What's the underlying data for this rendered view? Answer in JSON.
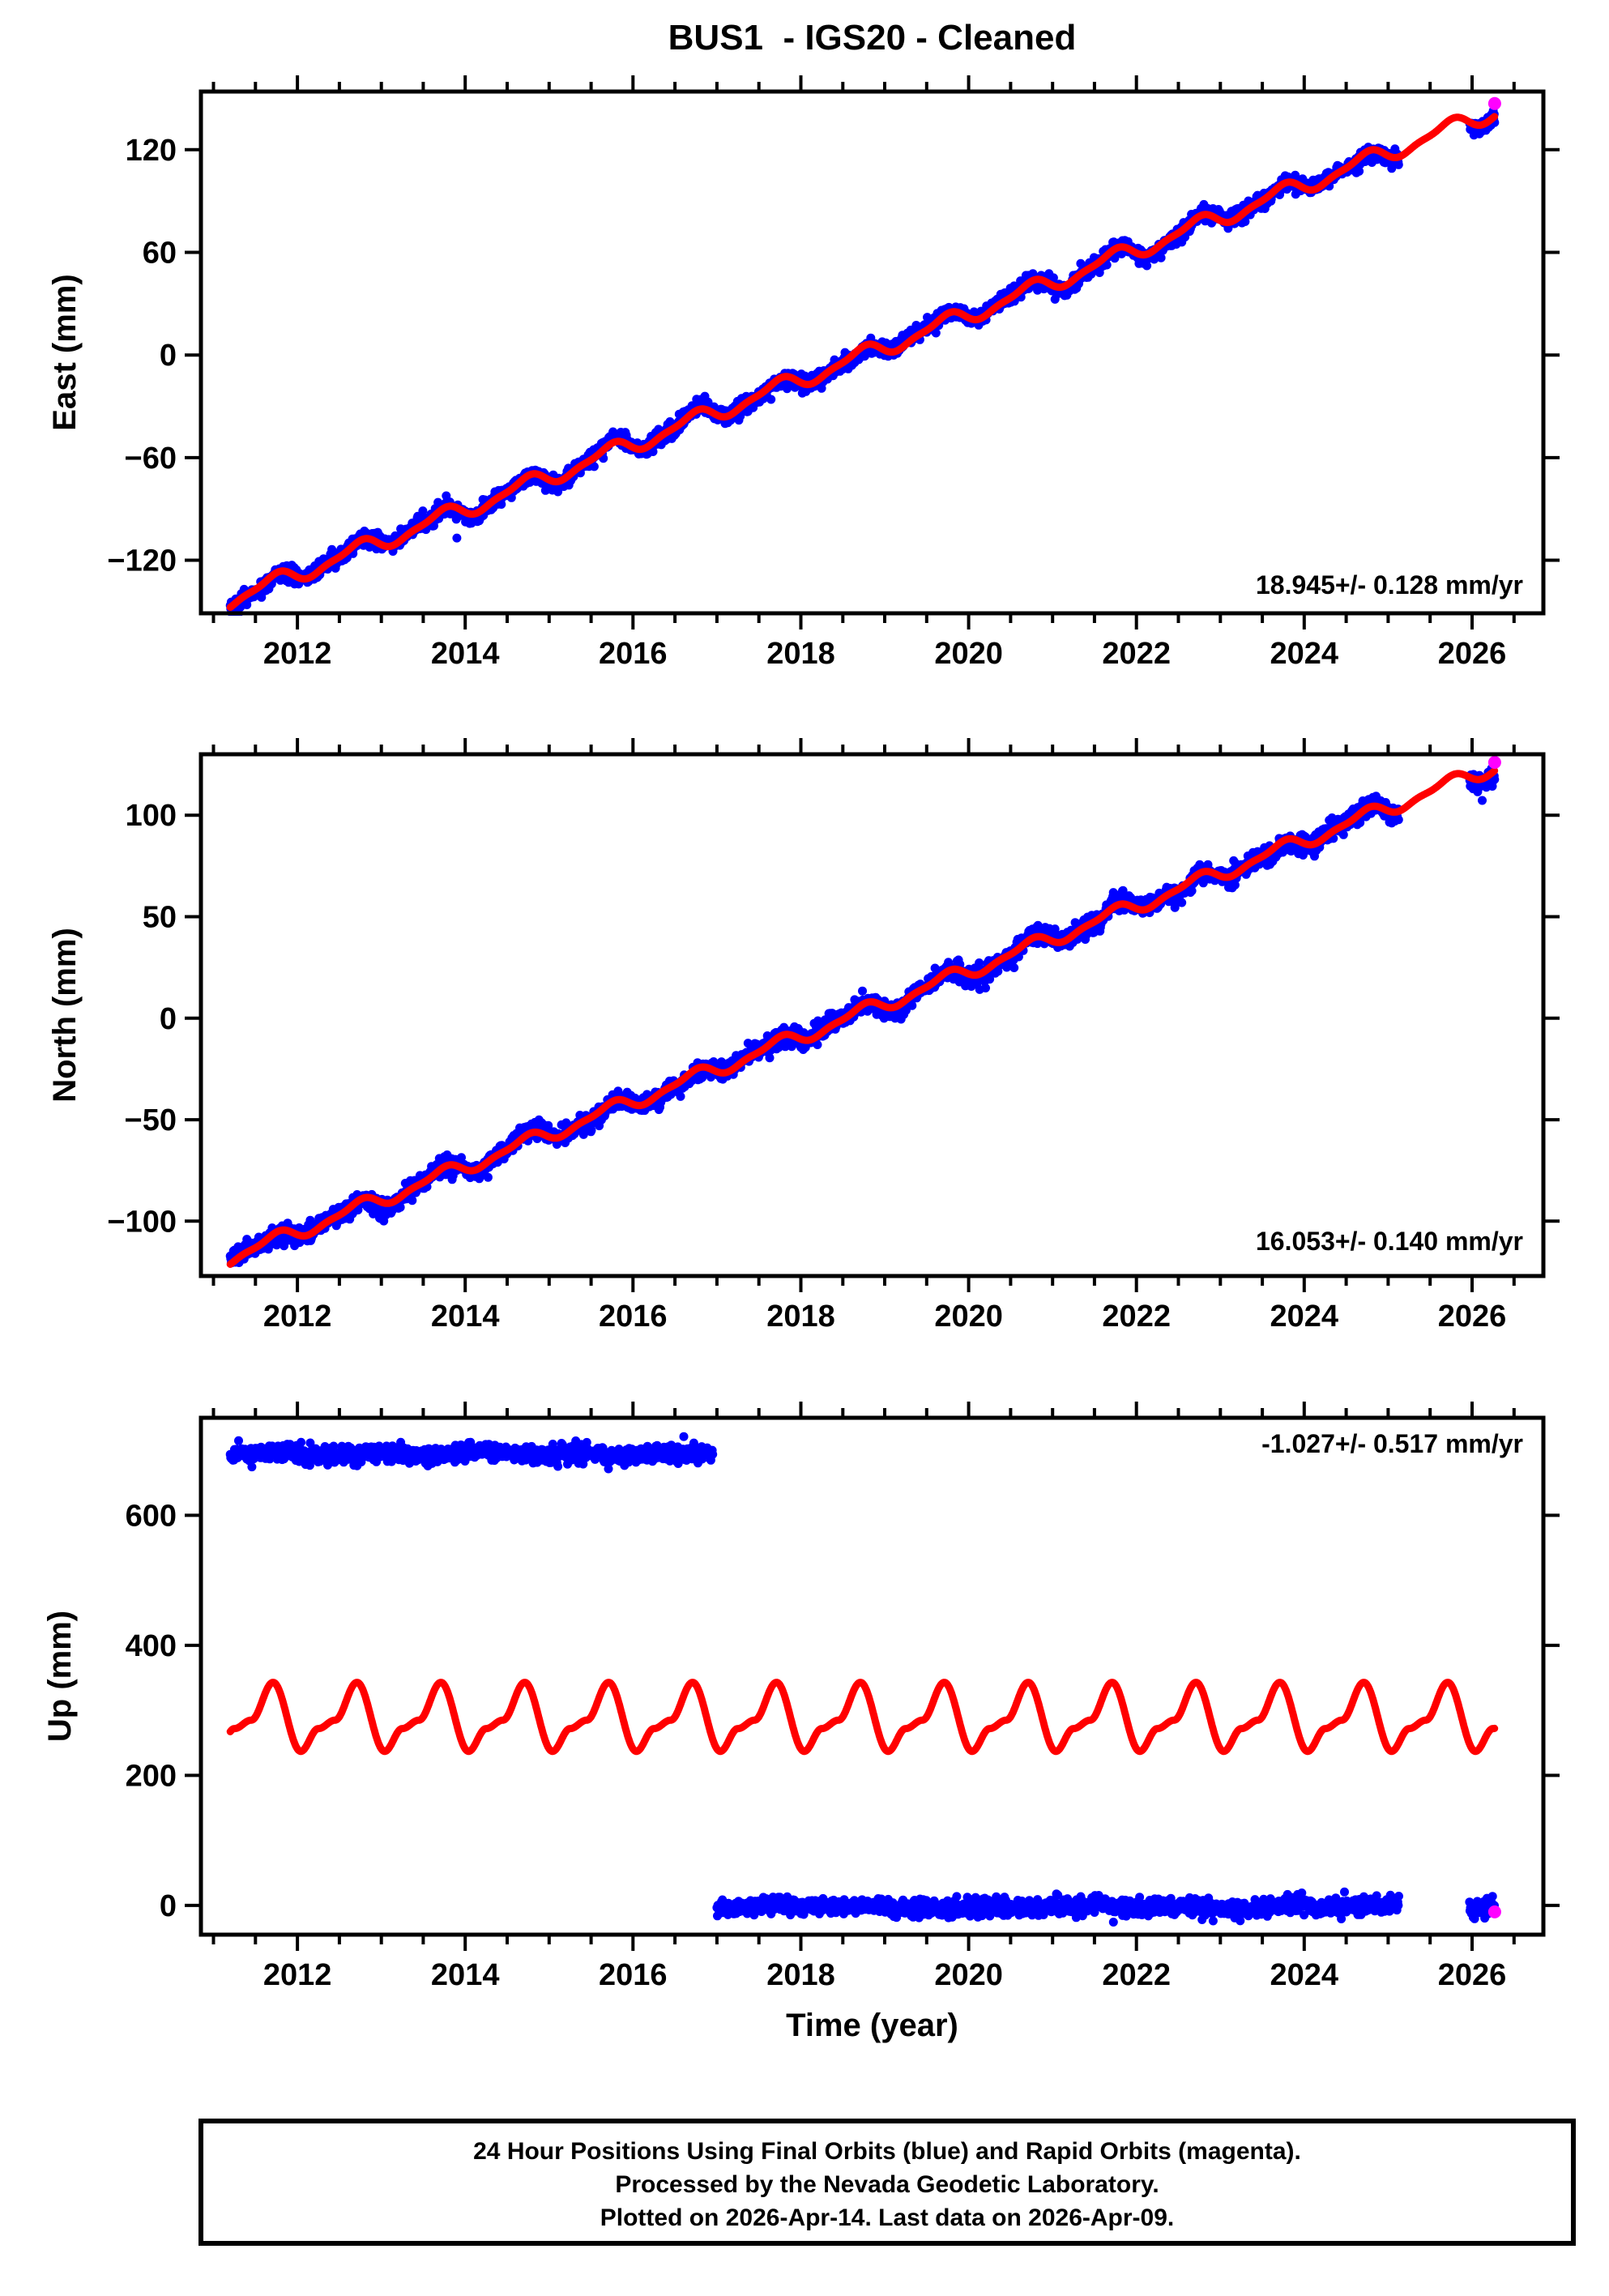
{
  "title": "BUS1  - IGS20 - Cleaned",
  "station": "BUS1",
  "reference_frame": "IGS20",
  "solution_status": "Cleaned",
  "xlabel": "Time (year)",
  "footer": {
    "line1": "24 Hour Positions Using Final Orbits (blue) and Rapid Orbits (magenta).",
    "line2": "Processed by the Nevada Geodetic Laboratory.",
    "line3": "Plotted on 2026-Apr-14. Last data on 2026-Apr-09."
  },
  "colors": {
    "final_orbits": "#0000ff",
    "rapid_orbits": "#ff00ff",
    "model_line": "#ff0000",
    "frame": "#000000",
    "background": "#ffffff"
  },
  "chart_data": [
    {
      "panel": "east",
      "type": "scatter",
      "ylabel": "East (mm)",
      "rate_label": "18.945+/- 0.128 mm/yr",
      "rate_mm_per_yr": 18.945,
      "rate_sigma_mm_per_yr": 0.128,
      "xlim": [
        2010.85,
        2026.85
      ],
      "ylim": [
        -151,
        154
      ],
      "xticks": [
        2012,
        2014,
        2016,
        2018,
        2020,
        2022,
        2024,
        2026
      ],
      "x_minor_step": 0.5,
      "yticks": [
        -120,
        -60,
        0,
        60,
        120
      ],
      "data_start": 2011.2,
      "data_end": 2026.27,
      "trend": {
        "y_start": -143,
        "y_end": 142.5
      },
      "seasonal": {
        "annual_amp": 4.5,
        "semiannual_amp": 1.5,
        "annual_phase": 0.46
      },
      "noise_sd": 2.3,
      "gaps": [
        [
          2025.13,
          2025.97
        ]
      ],
      "outliers": [
        [
          2013.9,
          -107
        ]
      ],
      "rapid_points": [
        [
          2026.27,
          147
        ]
      ],
      "model_points": [
        [
          2011.2,
          -143
        ],
        [
          2013,
          -108.9
        ],
        [
          2015,
          -71.0
        ],
        [
          2017,
          -33.1
        ],
        [
          2019,
          4.8
        ],
        [
          2021,
          42.7
        ],
        [
          2023,
          80.6
        ],
        [
          2025,
          118.4
        ],
        [
          2026.27,
          142.5
        ]
      ],
      "series_legend": [
        {
          "name": "Final Orbits",
          "color": "#0000ff"
        },
        {
          "name": "Rapid Orbits",
          "color": "#ff00ff"
        },
        {
          "name": "Model",
          "color": "#ff0000"
        }
      ]
    },
    {
      "panel": "north",
      "type": "scatter",
      "ylabel": "North (mm)",
      "rate_label": "16.053+/- 0.140 mm/yr",
      "rate_mm_per_yr": 16.053,
      "rate_sigma_mm_per_yr": 0.14,
      "xlim": [
        2010.85,
        2026.85
      ],
      "ylim": [
        -127,
        130
      ],
      "xticks": [
        2012,
        2014,
        2016,
        2018,
        2020,
        2022,
        2024,
        2026
      ],
      "x_minor_step": 0.5,
      "yticks": [
        -100,
        -50,
        0,
        50,
        100
      ],
      "data_start": 2011.2,
      "data_end": 2026.27,
      "trend": {
        "y_start": -118,
        "y_end": 124
      },
      "seasonal": {
        "annual_amp": 3.2,
        "semiannual_amp": 1.2,
        "annual_phase": 0.46
      },
      "noise_sd": 2.3,
      "gaps": [
        [
          2025.13,
          2025.97
        ]
      ],
      "outliers": [],
      "rapid_points": [
        [
          2026.27,
          126
        ]
      ],
      "model_points": [
        [
          2011.2,
          -118
        ],
        [
          2013,
          -89.1
        ],
        [
          2015,
          -57.0
        ],
        [
          2017,
          -24.9
        ],
        [
          2019,
          7.2
        ],
        [
          2021,
          39.3
        ],
        [
          2023,
          71.4
        ],
        [
          2025,
          103.5
        ],
        [
          2026.27,
          123.9
        ]
      ],
      "series_legend": [
        {
          "name": "Final Orbits",
          "color": "#0000ff"
        },
        {
          "name": "Rapid Orbits",
          "color": "#ff00ff"
        },
        {
          "name": "Model",
          "color": "#ff0000"
        }
      ]
    },
    {
      "panel": "up",
      "type": "scatter",
      "ylabel": "Up (mm)",
      "rate_label": "-1.027+/- 0.517 mm/yr",
      "rate_mm_per_yr": -1.027,
      "rate_sigma_mm_per_yr": 0.517,
      "xlim": [
        2010.85,
        2026.85
      ],
      "ylim": [
        -45,
        750
      ],
      "xticks": [
        2012,
        2014,
        2016,
        2018,
        2020,
        2022,
        2024,
        2026
      ],
      "x_minor_step": 0.5,
      "yticks": [
        0,
        200,
        400,
        600
      ],
      "segments": [
        {
          "x_start": 2011.2,
          "x_end": 2016.95,
          "level": 695
        },
        {
          "x_start": 2017.0,
          "x_end": 2025.13,
          "level": -2
        },
        {
          "x_start": 2025.97,
          "x_end": 2026.27,
          "level": -7
        }
      ],
      "noise_sd": 6.5,
      "rapid_points": [
        [
          2026.27,
          -10
        ]
      ],
      "model_wave": {
        "mean": 290,
        "peak": 343,
        "trough": 236,
        "period_years": 1.0,
        "peak_phase": 0.71,
        "trough_phase": 0.04,
        "keypoints": [
          [
            0.04,
            237
          ],
          [
            0.25,
            272
          ],
          [
            0.45,
            285
          ],
          [
            0.71,
            343
          ],
          [
            1.04,
            237
          ]
        ]
      },
      "series_legend": [
        {
          "name": "Final Orbits",
          "color": "#0000ff"
        },
        {
          "name": "Rapid Orbits",
          "color": "#ff00ff"
        },
        {
          "name": "Model",
          "color": "#ff0000"
        }
      ]
    }
  ]
}
